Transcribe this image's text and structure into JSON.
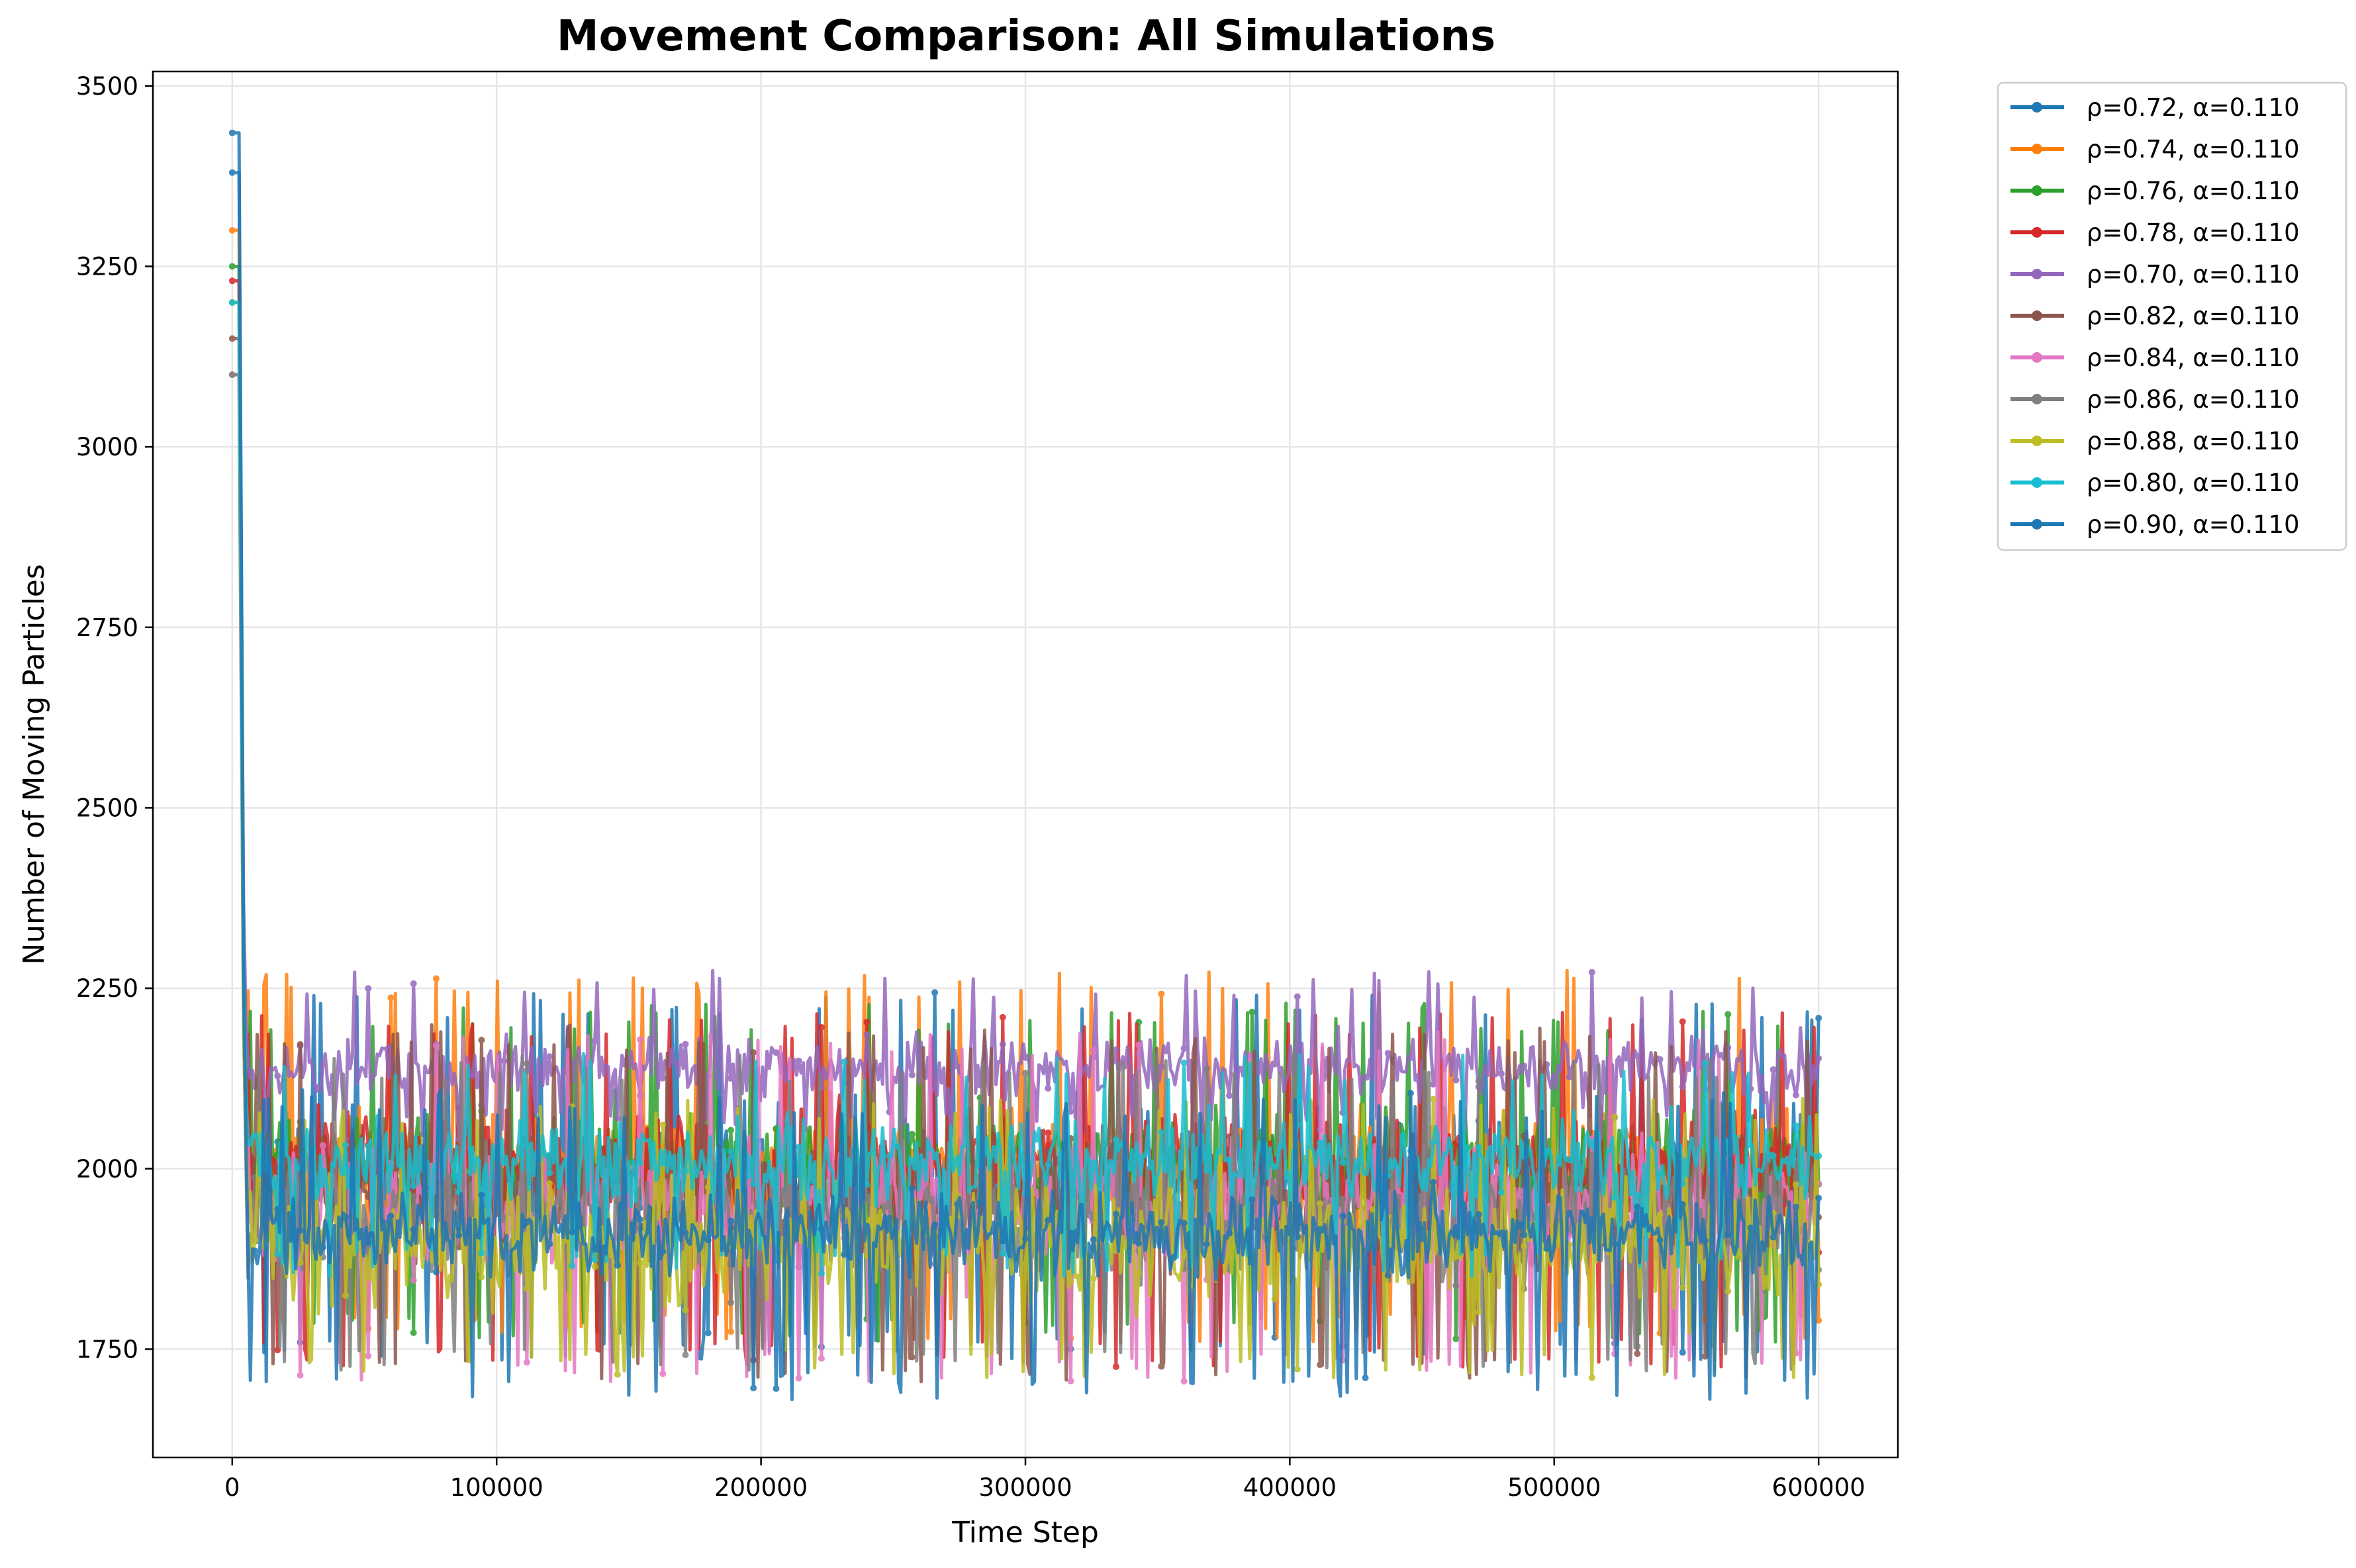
{
  "chart_data": {
    "type": "line",
    "title": "Movement Comparison: All Simulations",
    "xlabel": "Time Step",
    "ylabel": "Number of Moving Particles",
    "xlim": [
      -30000,
      630000
    ],
    "ylim": [
      1600,
      3520
    ],
    "xticks": [
      0,
      100000,
      200000,
      300000,
      400000,
      500000,
      600000
    ],
    "yticks": [
      1750,
      2000,
      2250,
      2500,
      2750,
      3000,
      3250,
      3500
    ],
    "grid": true,
    "legend_position": "outside-top-right",
    "series": [
      {
        "name": "ρ=0.72, α=0.110",
        "color": "#1f77b4",
        "peak": 3380,
        "base": 1985,
        "amp": 105,
        "hi": 2245,
        "lo": 1735
      },
      {
        "name": "ρ=0.74, α=0.110",
        "color": "#ff7f0e",
        "peak": 3300,
        "base": 2005,
        "amp": 100,
        "hi": 2275,
        "lo": 1760
      },
      {
        "name": "ρ=0.76, α=0.110",
        "color": "#2ca02c",
        "peak": 3250,
        "base": 2005,
        "amp": 100,
        "hi": 2230,
        "lo": 1760
      },
      {
        "name": "ρ=0.78, α=0.110",
        "color": "#d62728",
        "peak": 3230,
        "base": 2000,
        "amp": 100,
        "hi": 2220,
        "lo": 1725
      },
      {
        "name": "ρ=0.70, α=0.110",
        "color": "#9467bd",
        "peak": 3200,
        "base": 2140,
        "amp": 55,
        "hi": 2275,
        "lo": 2040
      },
      {
        "name": "ρ=0.82, α=0.110",
        "color": "#8c564b",
        "peak": 3150,
        "base": 1955,
        "amp": 110,
        "hi": 2200,
        "lo": 1705
      },
      {
        "name": "ρ=0.84, α=0.110",
        "color": "#e377c2",
        "peak": 3100,
        "base": 1950,
        "amp": 110,
        "hi": 2190,
        "lo": 1705
      },
      {
        "name": "ρ=0.86, α=0.110",
        "color": "#7f7f7f",
        "peak": 3100,
        "base": 1925,
        "amp": 110,
        "hi": 2160,
        "lo": 1720
      },
      {
        "name": "ρ=0.88, α=0.110",
        "color": "#bcbd22",
        "peak": 3200,
        "base": 1900,
        "amp": 110,
        "hi": 2100,
        "lo": 1710
      },
      {
        "name": "ρ=0.80, α=0.110",
        "color": "#17becf",
        "peak": 3200,
        "base": 2010,
        "amp": 75,
        "hi": 2160,
        "lo": 1850
      },
      {
        "name": "ρ=0.90, α=0.110",
        "color": "#1f77b4",
        "peak": 3435,
        "base": 1910,
        "amp": 70,
        "hi": 2110,
        "lo": 1680
      }
    ]
  }
}
